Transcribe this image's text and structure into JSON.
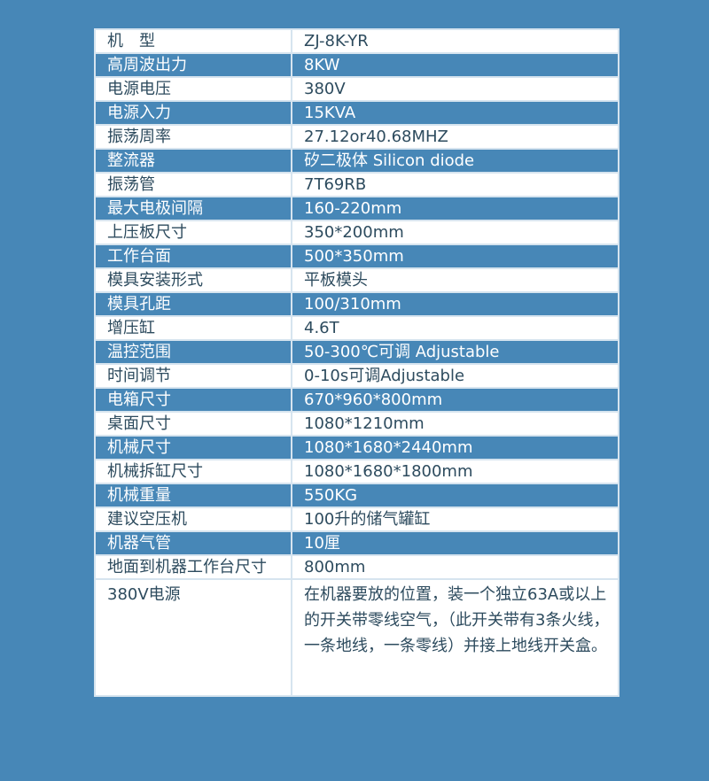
{
  "colors": {
    "background": "#4787b7",
    "row_light": "#ffffff",
    "row_dark": "#4787b7",
    "text_dark": "#2d4b5e"
  },
  "rows": [
    {
      "label": "机　型",
      "value": "ZJ-8K-YR"
    },
    {
      "label": "高周波出力",
      "value": "8KW"
    },
    {
      "label": "电源电压",
      "value": "380V"
    },
    {
      "label": "电源入力",
      "value": "15KVA"
    },
    {
      "label": "振荡周率",
      "value": "27.12or40.68MHZ"
    },
    {
      "label": "整流器",
      "value": "矽二极体  Silicon diode"
    },
    {
      "label": "振荡管",
      "value": "7T69RB"
    },
    {
      "label": "最大电极间隔",
      "value": "160-220mm"
    },
    {
      "label": "上压板尺寸",
      "value": "350*200mm"
    },
    {
      "label": "工作台面",
      "value": "500*350mm"
    },
    {
      "label": "模具安装形式",
      "value": "平板模头"
    },
    {
      "label": "模具孔距",
      "value": "100/310mm"
    },
    {
      "label": "增压缸",
      "value": "4.6T"
    },
    {
      "label": "温控范围",
      "value": "50-300℃可调 Adjustable"
    },
    {
      "label": "时间调节",
      "value": "0-10s可调Adjustable"
    },
    {
      "label": "电箱尺寸",
      "value": "670*960*800mm"
    },
    {
      "label": "桌面尺寸",
      "value": "1080*1210mm"
    },
    {
      "label": "机械尺寸",
      "value": "1080*1680*2440mm"
    },
    {
      "label": "机械拆缸尺寸",
      "value": "1080*1680*1800mm"
    },
    {
      "label": "机械重量",
      "value": "550KG"
    },
    {
      "label": "建议空压机",
      "value": "100升的储气罐缸"
    },
    {
      "label": "机器气管",
      "value": "10厘"
    },
    {
      "label": "地面到机器工作台尺寸",
      "value": "800mm"
    },
    {
      "label": "380V电源",
      "value": "在机器要放的位置，装一个独立63A或以上的开关带零线空气，（此开关带有3条火线，一条地线，一条零线）并接上地线开关盒。"
    }
  ]
}
